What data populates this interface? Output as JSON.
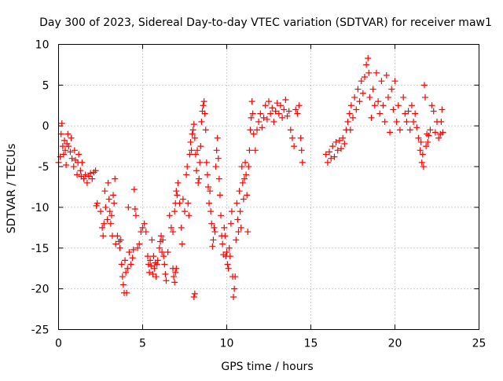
{
  "chart_data": {
    "type": "scatter",
    "title": "Day 300 of 2023, Sidereal Day-to-day VTEC variation (SDTVAR) for receiver maw1",
    "xlabel": "GPS time / hours",
    "ylabel": "SDTVAR / TECUs",
    "xlim": [
      0,
      25
    ],
    "ylim": [
      -25,
      10
    ],
    "xticks": [
      0,
      5,
      10,
      15,
      20,
      25
    ],
    "yticks": [
      -25,
      -20,
      -15,
      -10,
      -5,
      0,
      5,
      10
    ],
    "grid": true,
    "marker": "+",
    "color": "#ff0000",
    "series": [
      {
        "name": "SDTVAR",
        "points": [
          [
            0.0,
            -4.5
          ],
          [
            0.1,
            -3.8
          ],
          [
            0.15,
            -1.0
          ],
          [
            0.2,
            0.3
          ],
          [
            0.25,
            -2.5
          ],
          [
            0.3,
            -3.5
          ],
          [
            0.35,
            -1.8
          ],
          [
            0.4,
            -3.0
          ],
          [
            0.45,
            -4.8
          ],
          [
            0.5,
            -2.2
          ],
          [
            0.55,
            -1.0
          ],
          [
            0.6,
            -2.5
          ],
          [
            0.7,
            -3.2
          ],
          [
            0.75,
            -1.5
          ],
          [
            0.8,
            -4.0
          ],
          [
            0.9,
            -5.0
          ],
          [
            0.95,
            -3.0
          ],
          [
            1.0,
            -4.2
          ],
          [
            1.1,
            -6.0
          ],
          [
            1.15,
            -4.5
          ],
          [
            1.2,
            -3.5
          ],
          [
            1.3,
            -5.5
          ],
          [
            1.35,
            -6.2
          ],
          [
            1.4,
            -4.5
          ],
          [
            1.5,
            -6.5
          ],
          [
            1.6,
            -6.0
          ],
          [
            1.7,
            -7.0
          ],
          [
            1.8,
            -6.2
          ],
          [
            1.9,
            -5.8
          ],
          [
            2.0,
            -6.5
          ],
          [
            2.1,
            -5.7
          ],
          [
            2.2,
            -5.5
          ],
          [
            2.25,
            -9.8
          ],
          [
            2.3,
            -9.5
          ],
          [
            2.5,
            -10.5
          ],
          [
            2.6,
            -12.5
          ],
          [
            2.65,
            -13.5
          ],
          [
            2.7,
            -12.0
          ],
          [
            2.75,
            -8.0
          ],
          [
            2.8,
            -10.0
          ],
          [
            2.9,
            -11.5
          ],
          [
            2.95,
            -7.0
          ],
          [
            3.0,
            -9.0
          ],
          [
            3.05,
            -10.5
          ],
          [
            3.1,
            -12.0
          ],
          [
            3.15,
            -11.0
          ],
          [
            3.2,
            -13.5
          ],
          [
            3.25,
            -8.5
          ],
          [
            3.3,
            -9.5
          ],
          [
            3.35,
            -6.5
          ],
          [
            3.4,
            -14.5
          ],
          [
            3.5,
            -13.5
          ],
          [
            3.6,
            -14.2
          ],
          [
            3.65,
            -15.0
          ],
          [
            3.7,
            -14.0
          ],
          [
            3.75,
            -17.0
          ],
          [
            3.8,
            -18.5
          ],
          [
            3.85,
            -19.5
          ],
          [
            3.9,
            -20.5
          ],
          [
            3.95,
            -16.5
          ],
          [
            4.0,
            -18.0
          ],
          [
            4.05,
            -20.5
          ],
          [
            4.1,
            -17.5
          ],
          [
            4.15,
            -10.0
          ],
          [
            4.2,
            -15.5
          ],
          [
            4.3,
            -17.0
          ],
          [
            4.4,
            -16.2
          ],
          [
            4.45,
            -15.2
          ],
          [
            4.5,
            -7.8
          ],
          [
            4.55,
            -10.2
          ],
          [
            4.6,
            -11.0
          ],
          [
            4.7,
            -15.0
          ],
          [
            4.8,
            -14.5
          ],
          [
            4.9,
            -13.0
          ],
          [
            5.0,
            -12.5
          ],
          [
            5.1,
            -12.0
          ],
          [
            5.2,
            -13.0
          ],
          [
            5.3,
            -16.0
          ],
          [
            5.35,
            -17.0
          ],
          [
            5.4,
            -18.0
          ],
          [
            5.45,
            -16.5
          ],
          [
            5.5,
            -17.2
          ],
          [
            5.55,
            -14.0
          ],
          [
            5.6,
            -18.2
          ],
          [
            5.65,
            -16.0
          ],
          [
            5.7,
            -17.5
          ],
          [
            5.75,
            -16.8
          ],
          [
            5.8,
            -18.5
          ],
          [
            5.85,
            -17.0
          ],
          [
            5.9,
            -16.5
          ],
          [
            6.0,
            -15.0
          ],
          [
            6.05,
            -14.2
          ],
          [
            6.1,
            -13.5
          ],
          [
            6.15,
            -15.5
          ],
          [
            6.2,
            -14.0
          ],
          [
            6.25,
            -16.0
          ],
          [
            6.3,
            -17.0
          ],
          [
            6.35,
            -18.2
          ],
          [
            6.4,
            -19.0
          ],
          [
            6.5,
            -15.5
          ],
          [
            6.6,
            -11.0
          ],
          [
            6.7,
            -12.5
          ],
          [
            6.8,
            -17.5
          ],
          [
            6.85,
            -18.5
          ],
          [
            6.9,
            -19.2
          ],
          [
            6.95,
            -18.0
          ],
          [
            7.0,
            -17.5
          ],
          [
            6.8,
            -13.0
          ],
          [
            6.9,
            -10.5
          ],
          [
            6.95,
            -9.5
          ],
          [
            7.0,
            -8.0
          ],
          [
            7.05,
            -8.5
          ],
          [
            7.1,
            -7.0
          ],
          [
            7.2,
            -9.5
          ],
          [
            7.3,
            -12.5
          ],
          [
            7.35,
            -14.5
          ],
          [
            7.4,
            -9.0
          ],
          [
            7.5,
            -10.5
          ],
          [
            7.6,
            -6.0
          ],
          [
            7.65,
            -5.0
          ],
          [
            7.7,
            -9.5
          ],
          [
            7.75,
            -11.0
          ],
          [
            7.8,
            -3.5
          ],
          [
            7.85,
            -2.0
          ],
          [
            7.9,
            -3.0
          ],
          [
            7.95,
            -1.0
          ],
          [
            8.0,
            -0.5
          ],
          [
            8.05,
            0.2
          ],
          [
            8.1,
            -1.5
          ],
          [
            8.15,
            -3.5
          ],
          [
            8.2,
            -5.5
          ],
          [
            8.25,
            -3.0
          ],
          [
            8.3,
            -7.0
          ],
          [
            8.35,
            -6.5
          ],
          [
            8.4,
            -4.5
          ],
          [
            8.45,
            -2.5
          ],
          [
            8.5,
            0.5
          ],
          [
            8.55,
            1.8
          ],
          [
            8.6,
            2.5
          ],
          [
            8.65,
            3.0
          ],
          [
            8.7,
            1.5
          ],
          [
            8.75,
            -0.5
          ],
          [
            8.8,
            -4.5
          ],
          [
            8.85,
            -6.0
          ],
          [
            8.9,
            -7.5
          ],
          [
            8.95,
            -9.5
          ],
          [
            9.0,
            -8.0
          ],
          [
            9.05,
            -10.5
          ],
          [
            9.1,
            -12.0
          ],
          [
            9.15,
            -14.8
          ],
          [
            9.2,
            -14.0
          ],
          [
            9.25,
            -12.5
          ],
          [
            9.3,
            -13.0
          ],
          [
            9.35,
            -5.0
          ],
          [
            9.4,
            -3.0
          ],
          [
            9.45,
            -1.5
          ],
          [
            9.5,
            -4.0
          ],
          [
            9.55,
            -6.5
          ],
          [
            9.6,
            -8.5
          ],
          [
            9.65,
            -11.0
          ],
          [
            9.7,
            -13.5
          ],
          [
            9.75,
            -14.5
          ],
          [
            9.8,
            -15.8
          ],
          [
            9.85,
            -12.5
          ],
          [
            9.9,
            -13.5
          ],
          [
            9.95,
            -16.0
          ],
          [
            10.0,
            -15.5
          ],
          [
            10.05,
            -17.0
          ],
          [
            10.1,
            -17.5
          ],
          [
            10.15,
            -15.0
          ],
          [
            10.2,
            -16.0
          ],
          [
            10.25,
            -12.0
          ],
          [
            10.3,
            -10.5
          ],
          [
            10.35,
            -18.5
          ],
          [
            10.4,
            -21.0
          ],
          [
            10.45,
            -20.0
          ],
          [
            10.5,
            -18.5
          ],
          [
            10.55,
            -14.0
          ],
          [
            10.6,
            -9.5
          ],
          [
            10.65,
            -11.5
          ],
          [
            10.7,
            -13.0
          ],
          [
            10.75,
            -8.0
          ],
          [
            10.8,
            -10.5
          ],
          [
            10.85,
            -12.5
          ],
          [
            10.9,
            -5.0
          ],
          [
            10.95,
            -7.0
          ],
          [
            11.0,
            -9.0
          ],
          [
            11.05,
            -6.5
          ],
          [
            11.1,
            -4.5
          ],
          [
            11.15,
            -6.0
          ],
          [
            11.2,
            -8.5
          ],
          [
            11.25,
            -13.0
          ],
          [
            11.3,
            -5.0
          ],
          [
            11.35,
            -3.0
          ],
          [
            11.4,
            -0.5
          ],
          [
            11.45,
            1.0
          ],
          [
            11.5,
            3.0
          ],
          [
            11.55,
            1.5
          ],
          [
            11.6,
            -1.0
          ],
          [
            11.7,
            -3.0
          ],
          [
            11.8,
            -0.5
          ],
          [
            11.9,
            0.5
          ],
          [
            12.0,
            1.5
          ],
          [
            12.1,
            -0.2
          ],
          [
            12.2,
            1.0
          ],
          [
            12.3,
            2.5
          ],
          [
            12.4,
            0.8
          ],
          [
            12.5,
            3.0
          ],
          [
            12.6,
            1.5
          ],
          [
            12.7,
            2.2
          ],
          [
            12.8,
            0.5
          ],
          [
            12.9,
            1.8
          ],
          [
            13.0,
            2.8
          ],
          [
            13.1,
            1.5
          ],
          [
            13.2,
            2.5
          ],
          [
            13.3,
            1.0
          ],
          [
            13.4,
            2.0
          ],
          [
            13.5,
            3.2
          ],
          [
            13.6,
            1.2
          ],
          [
            13.7,
            1.8
          ],
          [
            13.8,
            -0.5
          ],
          [
            13.9,
            -1.5
          ],
          [
            14.0,
            -2.5
          ],
          [
            14.1,
            2.0
          ],
          [
            14.2,
            1.5
          ],
          [
            14.3,
            2.5
          ],
          [
            14.4,
            -1.5
          ],
          [
            14.45,
            -3.0
          ],
          [
            14.5,
            -4.5
          ],
          [
            15.9,
            -3.5
          ],
          [
            16.0,
            -4.5
          ],
          [
            16.1,
            -3.2
          ],
          [
            16.2,
            -4.0
          ],
          [
            16.3,
            -2.5
          ],
          [
            16.4,
            -3.8
          ],
          [
            16.5,
            -2.0
          ],
          [
            16.6,
            -3.0
          ],
          [
            16.7,
            -1.8
          ],
          [
            16.8,
            -2.8
          ],
          [
            16.9,
            -1.5
          ],
          [
            17.0,
            -2.2
          ],
          [
            17.1,
            -0.5
          ],
          [
            17.2,
            0.5
          ],
          [
            17.3,
            1.5
          ],
          [
            17.35,
            -0.5
          ],
          [
            17.4,
            2.5
          ],
          [
            17.5,
            1.0
          ],
          [
            17.6,
            3.5
          ],
          [
            17.7,
            2.0
          ],
          [
            17.8,
            4.5
          ],
          [
            17.9,
            3.0
          ],
          [
            18.0,
            5.5
          ],
          [
            18.1,
            4.0
          ],
          [
            18.2,
            6.0
          ],
          [
            18.3,
            7.5
          ],
          [
            18.4,
            8.3
          ],
          [
            18.45,
            6.5
          ],
          [
            18.5,
            3.5
          ],
          [
            18.6,
            1.0
          ],
          [
            18.7,
            4.5
          ],
          [
            18.8,
            2.5
          ],
          [
            18.9,
            6.5
          ],
          [
            19.0,
            3.0
          ],
          [
            19.1,
            1.5
          ],
          [
            19.2,
            5.5
          ],
          [
            19.3,
            2.5
          ],
          [
            19.4,
            0.5
          ],
          [
            19.5,
            6.2
          ],
          [
            19.6,
            3.5
          ],
          [
            19.7,
            -0.8
          ],
          [
            19.8,
            4.5
          ],
          [
            19.9,
            2.0
          ],
          [
            20.0,
            5.5
          ],
          [
            20.1,
            0.5
          ],
          [
            20.2,
            2.5
          ],
          [
            20.3,
            -0.5
          ],
          [
            20.5,
            3.5
          ],
          [
            20.6,
            1.5
          ],
          [
            20.7,
            0.5
          ],
          [
            20.8,
            1.8
          ],
          [
            20.9,
            -0.5
          ],
          [
            21.0,
            2.5
          ],
          [
            21.1,
            0.5
          ],
          [
            21.2,
            1.5
          ],
          [
            21.3,
            -0.2
          ],
          [
            21.4,
            -1.5
          ],
          [
            21.5,
            -3.0
          ],
          [
            21.55,
            -2.0
          ],
          [
            21.6,
            -4.5
          ],
          [
            21.65,
            -3.5
          ],
          [
            21.7,
            -5.0
          ],
          [
            21.75,
            5.0
          ],
          [
            21.8,
            3.5
          ],
          [
            21.85,
            -2.5
          ],
          [
            21.9,
            -1.0
          ],
          [
            21.95,
            -2.0
          ],
          [
            22.0,
            -1.2
          ],
          [
            22.1,
            -0.5
          ],
          [
            22.2,
            2.5
          ],
          [
            22.3,
            1.8
          ],
          [
            22.4,
            -0.8
          ],
          [
            22.5,
            0.5
          ],
          [
            22.6,
            -1.5
          ],
          [
            22.7,
            -1.0
          ],
          [
            22.75,
            0.5
          ],
          [
            22.8,
            2.0
          ],
          [
            22.85,
            -0.8
          ],
          [
            8.1,
            -20.6
          ],
          [
            8.05,
            -21.0
          ]
        ]
      }
    ]
  }
}
